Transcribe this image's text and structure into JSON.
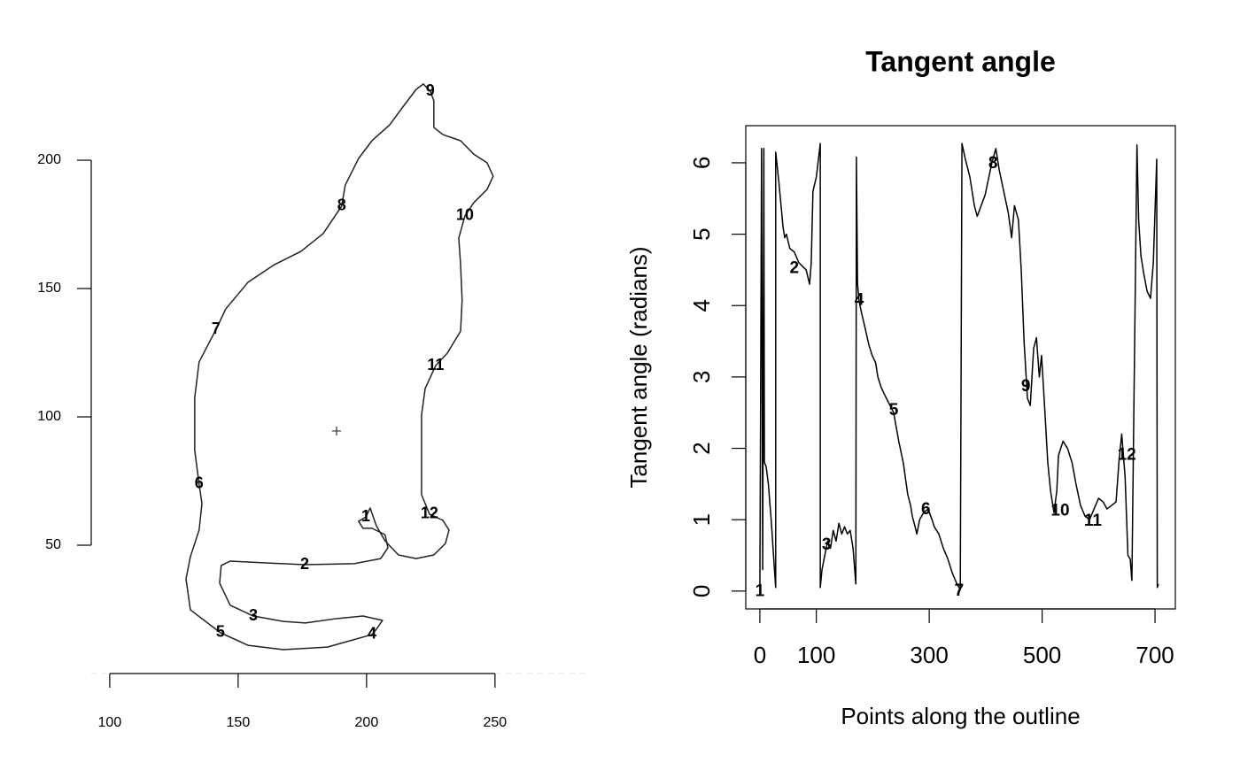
{
  "chart_data": [
    {
      "type": "outline",
      "x": [
        199.7,
        196.9,
        198.6,
        202.1,
        207.2,
        208.3,
        205.5,
        195.2,
        175.9,
        160.7,
        146.9,
        143.4,
        142.8,
        146.9,
        155.9,
        167.6,
        176.2,
        188.3,
        198.6,
        206.2,
        203.8,
        202.1,
        184.8,
        167.6,
        153.8,
        143.1,
        131.4,
        129.7,
        131.4,
        134.8,
        135.9,
        134.8,
        133.1,
        133.1,
        134.8,
        141.4,
        145.2,
        153.8,
        164.1,
        174.5,
        183.1,
        190.3,
        191.7,
        196.9,
        202.1,
        209,
        214.1,
        219.3,
        222.1,
        224.8,
        226.2,
        226.2,
        229.7,
        236.6,
        241.7,
        246.9,
        249.3,
        246.9,
        241.7,
        238.3,
        235.9,
        236.6,
        237.2,
        236.6,
        231.4,
        226.9,
        222.8,
        221.4,
        221.4,
        221.4,
        224.5,
        229.7,
        232.1,
        230.7,
        226.2,
        219.3,
        212.4,
        207.2,
        203.8,
        201.4
      ],
      "y": [
        61,
        59.3,
        56.6,
        56.6,
        54.1,
        49,
        44.8,
        42.8,
        42.4,
        43.1,
        43.8,
        42.1,
        35.2,
        26.6,
        22.4,
        20.3,
        19.7,
        21.4,
        22.4,
        20.7,
        17.2,
        15.2,
        10.3,
        9.3,
        11,
        15.9,
        24.8,
        36.9,
        45.5,
        55.9,
        66.2,
        73.8,
        86.9,
        107.6,
        121.4,
        134.1,
        142.1,
        152.4,
        159.3,
        164.5,
        171.4,
        182.1,
        190.3,
        200.7,
        207.6,
        213.8,
        220.7,
        227.6,
        229.7,
        226.9,
        223.1,
        212.8,
        210,
        207.6,
        202.4,
        199,
        193.8,
        188.6,
        183.4,
        178.3,
        169.7,
        159.3,
        145.5,
        133.4,
        124.8,
        120,
        111,
        100.7,
        83.4,
        69.7,
        62.1,
        59.7,
        55.9,
        50.7,
        46.2,
        44.8,
        46.2,
        51.7,
        57.6,
        64.5
      ],
      "color": "#222222",
      "xlim": [
        92.8,
        286.6
      ],
      "ylim": [
        0,
        230.7
      ],
      "xticks": [
        100,
        150,
        200,
        250
      ],
      "yticks": [
        50,
        100,
        150,
        200
      ],
      "landmarks": {
        "labels": [
          "1",
          "2",
          "3",
          "4",
          "5",
          "6",
          "7",
          "8",
          "9",
          "10",
          "11",
          "12"
        ],
        "x": [
          199.7,
          175.9,
          155.9,
          202.1,
          143.1,
          134.8,
          141.4,
          190.3,
          224.8,
          238.3,
          226.9,
          224.5
        ],
        "y": [
          61.0,
          42.4,
          22.4,
          15.2,
          15.9,
          73.8,
          134.1,
          182.1,
          226.9,
          178.3,
          120,
          62.1
        ]
      },
      "centroid": {
        "x": 188.3,
        "y": 94.5
      }
    },
    {
      "type": "line",
      "title": "Tangent angle",
      "xlabel": "Points along the outline",
      "ylabel": "Tangent angle (radians)",
      "x": [
        0,
        3,
        5,
        7,
        8,
        11,
        15,
        20,
        25,
        28,
        28,
        34,
        41,
        44,
        47,
        53,
        61,
        69,
        82,
        88,
        91,
        94,
        100,
        107,
        107,
        110,
        115,
        120,
        125,
        130,
        135,
        140,
        145,
        150,
        155,
        160,
        165,
        170,
        171,
        173,
        176,
        180,
        186,
        193,
        199,
        205,
        209,
        215,
        221,
        237,
        246,
        254,
        262,
        267,
        270,
        275,
        278,
        283,
        290,
        298,
        305,
        309,
        317,
        325,
        333,
        341,
        349,
        355,
        358,
        364,
        372,
        380,
        385,
        392,
        399,
        403,
        411,
        418,
        424,
        432,
        440,
        446,
        451,
        458,
        463,
        468,
        474,
        479,
        485,
        490,
        495,
        499,
        505,
        510,
        515,
        521,
        526,
        529,
        537,
        545,
        553,
        560,
        568,
        576,
        584,
        592,
        600,
        608,
        615,
        623,
        631,
        636,
        641,
        647,
        652,
        656,
        659,
        668,
        671,
        675,
        680,
        686,
        692,
        697,
        703,
        704,
        706
      ],
      "values": [
        0.05,
        6.2,
        0.3,
        6.2,
        1.8,
        1.75,
        1.5,
        1.0,
        0.4,
        0.05,
        6.15,
        5.7,
        5.1,
        4.95,
        5.0,
        4.8,
        4.75,
        4.6,
        4.5,
        4.3,
        4.6,
        5.6,
        5.8,
        6.27,
        0.05,
        0.3,
        0.5,
        0.7,
        0.6,
        0.85,
        0.7,
        0.95,
        0.8,
        0.9,
        0.8,
        0.85,
        0.6,
        0.1,
        6.08,
        4.3,
        4.05,
        3.9,
        3.7,
        3.45,
        3.3,
        3.2,
        3.0,
        2.85,
        2.75,
        2.5,
        2.1,
        1.8,
        1.35,
        1.2,
        1.05,
        0.9,
        0.8,
        1.0,
        1.1,
        1.15,
        1.0,
        0.9,
        0.8,
        0.6,
        0.45,
        0.25,
        0.1,
        0.02,
        6.27,
        6.05,
        5.8,
        5.4,
        5.25,
        5.4,
        5.55,
        5.7,
        6.0,
        6.2,
        5.9,
        5.6,
        5.3,
        4.95,
        5.4,
        5.2,
        4.5,
        3.5,
        2.7,
        2.6,
        3.4,
        3.55,
        3.0,
        3.3,
        2.5,
        1.8,
        1.4,
        1.1,
        1.4,
        1.9,
        2.1,
        2.0,
        1.8,
        1.5,
        1.2,
        1.05,
        1.0,
        1.15,
        1.3,
        1.25,
        1.15,
        1.2,
        1.25,
        1.8,
        2.2,
        1.6,
        0.5,
        0.45,
        0.15,
        6.25,
        5.2,
        4.7,
        4.45,
        4.2,
        4.1,
        4.6,
        6.05,
        0.05,
        0.1
      ],
      "color": "#000000",
      "xlim": [
        -25,
        736
      ],
      "ylim": [
        -0.25,
        6.52
      ],
      "xticks": [
        0,
        100,
        300,
        500,
        700
      ],
      "yticks": [
        0,
        1,
        2,
        3,
        4,
        5,
        6
      ],
      "landmarks": {
        "labels": [
          "1",
          "2",
          "3",
          "4",
          "5",
          "6",
          "7",
          "8",
          "9",
          "10",
          "11",
          "12"
        ],
        "x": [
          0,
          61,
          118,
          176,
          237,
          294,
          353,
          413,
          471,
          532,
          590,
          650
        ],
        "y": [
          -0.01,
          4.52,
          0.64,
          4.07,
          2.53,
          1.14,
          0,
          5.99,
          2.86,
          1.12,
          0.98,
          1.9
        ]
      }
    }
  ]
}
